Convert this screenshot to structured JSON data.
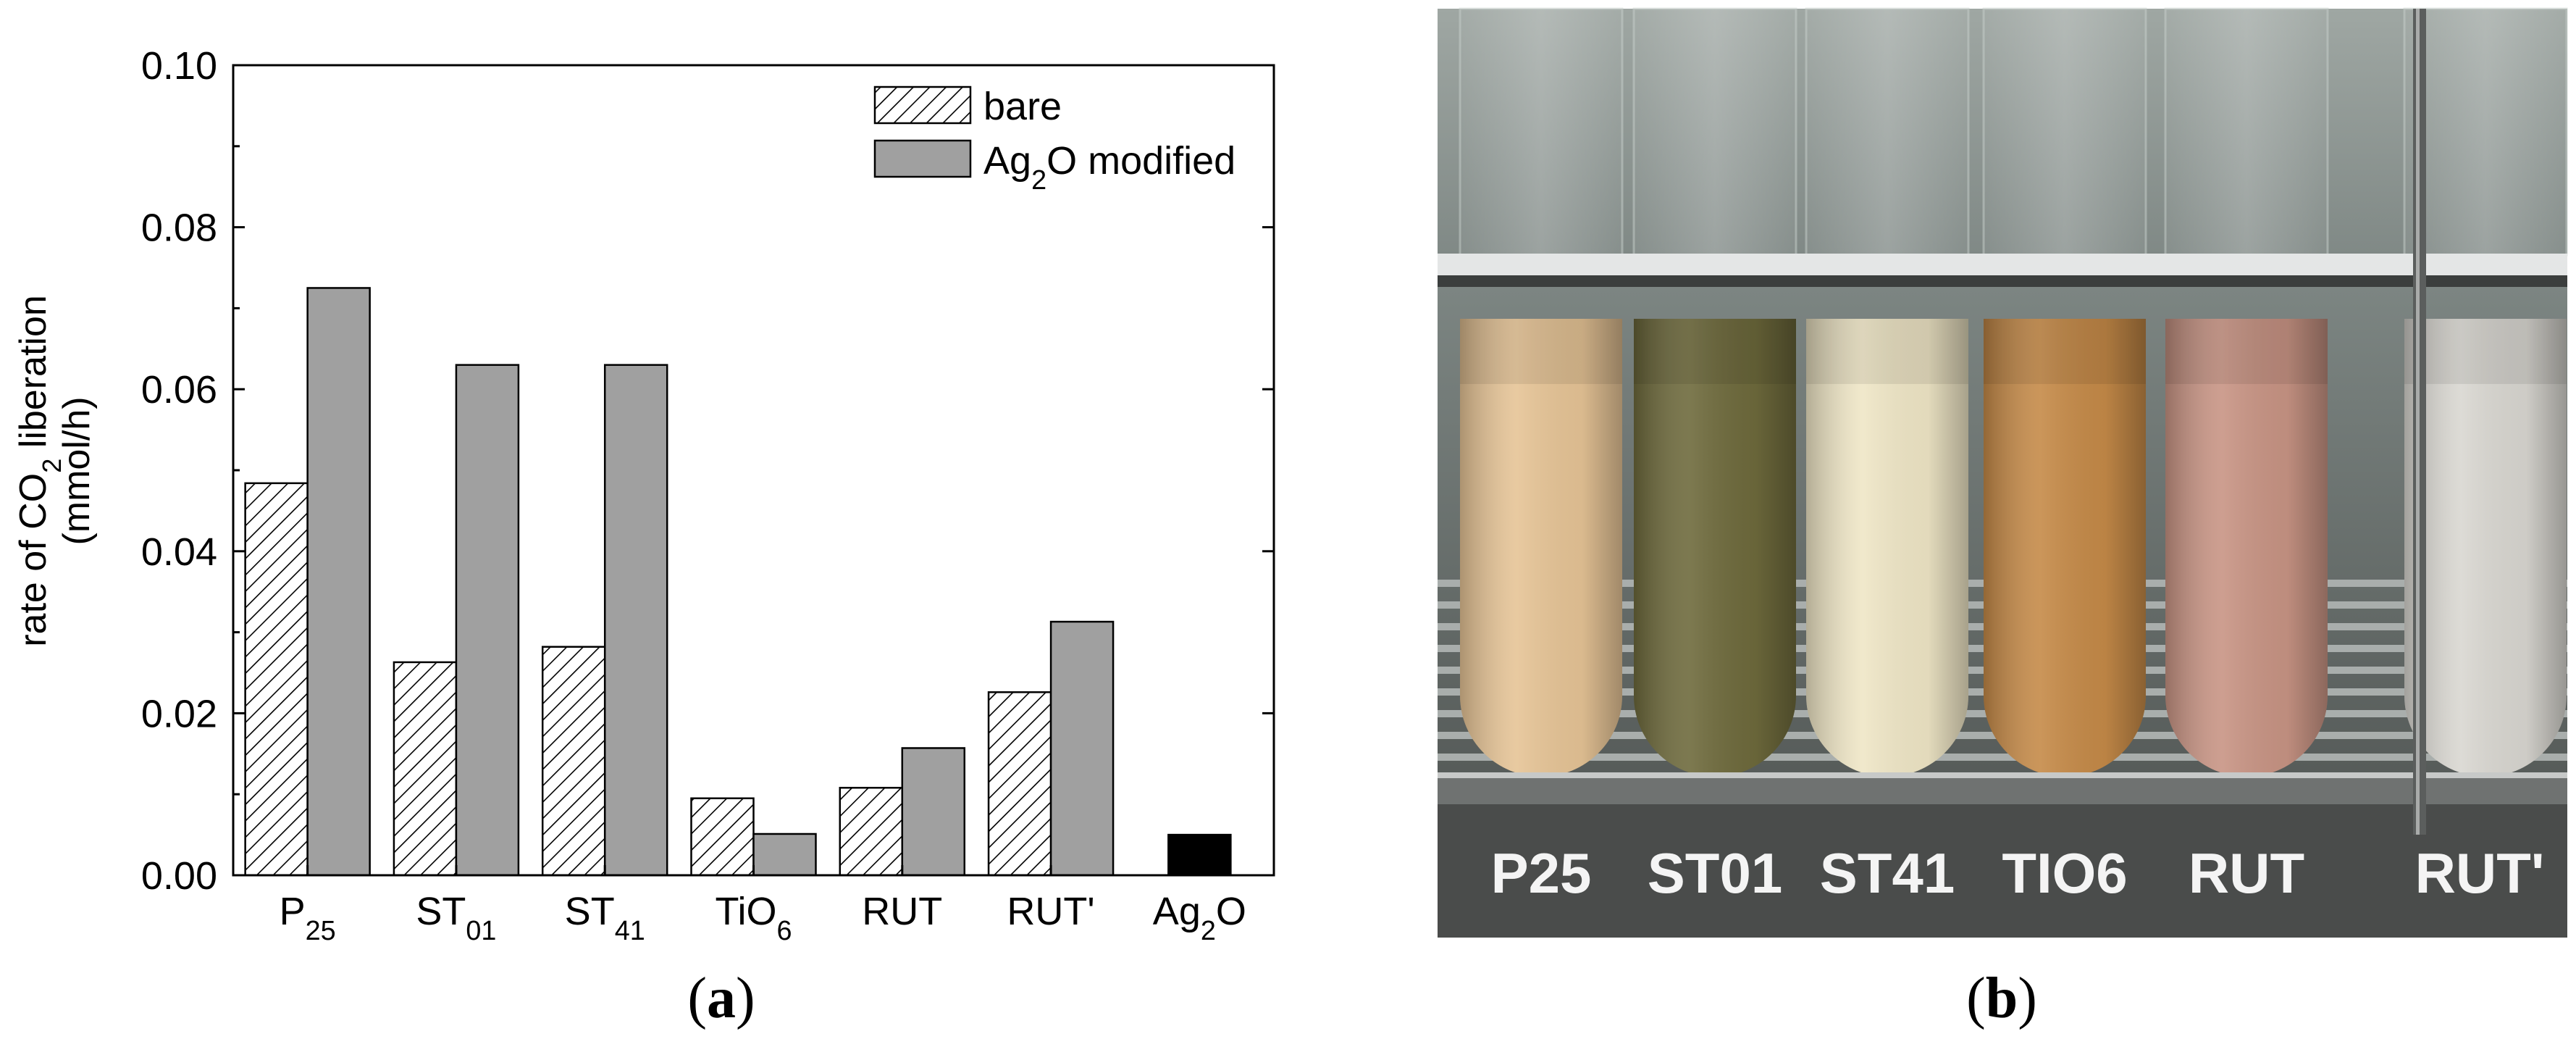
{
  "chart_data": {
    "type": "bar",
    "categories": [
      "P25",
      "ST01",
      "ST41",
      "TiO6",
      "RUT",
      "RUT'",
      "Ag2O"
    ],
    "series": [
      {
        "name": "bare",
        "values": [
          0.0484,
          0.0263,
          0.0282,
          0.0095,
          0.0108,
          0.0226,
          null
        ],
        "fill": "hatched"
      },
      {
        "name": "Ag2O modified",
        "values": [
          0.0725,
          0.063,
          0.063,
          0.0051,
          0.0157,
          0.0313,
          null
        ],
        "color": "#a0a0a0"
      },
      {
        "name": "Ag2O",
        "values": [
          null,
          null,
          null,
          null,
          null,
          null,
          0.005
        ],
        "color": "#000000"
      }
    ],
    "ylim": [
      0,
      0.1
    ],
    "yticks": [
      "0.00",
      "0.02",
      "0.04",
      "0.06",
      "0.08",
      "0.10"
    ],
    "ylabel": "rate of CO2 liberation (mmol/h)",
    "xlabel": "",
    "legend_position": "top-right",
    "grid": false
  },
  "panel_a": {
    "letter": "a"
  },
  "panel_b": {
    "letter": "b",
    "tube_labels": [
      "P25",
      "ST01",
      "ST41",
      "TIO6",
      "RUT",
      "RUT'"
    ],
    "tube_colors": [
      "#e6c496",
      "#6e6a3c",
      "#efe6c6",
      "#c58a48",
      "#c89484",
      "#d9d7d1"
    ]
  }
}
